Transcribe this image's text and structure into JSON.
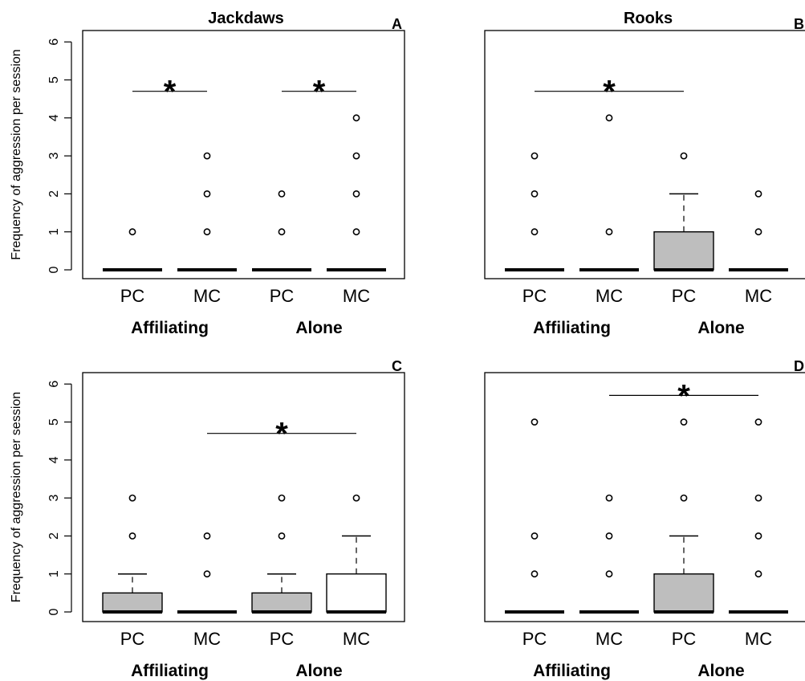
{
  "figure": {
    "ylabel": "Frequency of aggression per session",
    "y_ticks": [
      "0",
      "1",
      "2",
      "3",
      "4",
      "5",
      "6"
    ],
    "colors": {
      "filled_box": "#bebebe",
      "empty_box": "#ffffff",
      "line": "#000000"
    }
  },
  "chart_data": [
    {
      "type": "box",
      "panel_letter": "A",
      "title": "Jackdaws",
      "ylabel": "Frequency of aggression per session",
      "ylim": [
        0,
        6
      ],
      "categories": [
        "PC",
        "MC",
        "PC",
        "MC"
      ],
      "groups": [
        "Affiliating",
        "Alone"
      ],
      "boxes": [
        {
          "label": "PC",
          "group": "Affiliating",
          "q1": 0,
          "median": 0,
          "q3": 0,
          "whisker_low": 0,
          "whisker_high": 0,
          "outliers": [
            1
          ],
          "fill": "#bebebe"
        },
        {
          "label": "MC",
          "group": "Affiliating",
          "q1": 0,
          "median": 0,
          "q3": 0,
          "whisker_low": 0,
          "whisker_high": 0,
          "outliers": [
            1,
            2,
            3
          ],
          "fill": "#ffffff"
        },
        {
          "label": "PC",
          "group": "Alone",
          "q1": 0,
          "median": 0,
          "q3": 0,
          "whisker_low": 0,
          "whisker_high": 0,
          "outliers": [
            1,
            2
          ],
          "fill": "#bebebe"
        },
        {
          "label": "MC",
          "group": "Alone",
          "q1": 0,
          "median": 0,
          "q3": 0,
          "whisker_low": 0,
          "whisker_high": 0,
          "outliers": [
            1,
            2,
            3,
            4
          ],
          "fill": "#ffffff"
        }
      ],
      "significance": [
        {
          "from_box": 1,
          "to_box": 2,
          "y": 4.7,
          "symbol": "*"
        },
        {
          "from_box": 3,
          "to_box": 4,
          "y": 4.7,
          "symbol": "*"
        }
      ]
    },
    {
      "type": "box",
      "panel_letter": "B",
      "title": "Rooks",
      "ylabel": "",
      "ylim": [
        0,
        6
      ],
      "categories": [
        "PC",
        "MC",
        "PC",
        "MC"
      ],
      "groups": [
        "Affiliating",
        "Alone"
      ],
      "boxes": [
        {
          "label": "PC",
          "group": "Affiliating",
          "q1": 0,
          "median": 0,
          "q3": 0,
          "whisker_low": 0,
          "whisker_high": 0,
          "outliers": [
            1,
            2,
            3
          ],
          "fill": "#bebebe"
        },
        {
          "label": "MC",
          "group": "Affiliating",
          "q1": 0,
          "median": 0,
          "q3": 0,
          "whisker_low": 0,
          "whisker_high": 0,
          "outliers": [
            1,
            4
          ],
          "fill": "#ffffff"
        },
        {
          "label": "PC",
          "group": "Alone",
          "q1": 0,
          "median": 0,
          "q3": 1,
          "whisker_low": 0,
          "whisker_high": 2,
          "outliers": [
            3
          ],
          "fill": "#bebebe"
        },
        {
          "label": "MC",
          "group": "Alone",
          "q1": 0,
          "median": 0,
          "q3": 0,
          "whisker_low": 0,
          "whisker_high": 0,
          "outliers": [
            1,
            2
          ],
          "fill": "#ffffff"
        }
      ],
      "significance": [
        {
          "from_box": 1,
          "to_box": 3,
          "y": 4.7,
          "symbol": "*"
        }
      ]
    },
    {
      "type": "box",
      "panel_letter": "C",
      "title": "",
      "ylabel": "Frequency of aggression per session",
      "ylim": [
        0,
        6
      ],
      "categories": [
        "PC",
        "MC",
        "PC",
        "MC"
      ],
      "groups": [
        "Affiliating",
        "Alone"
      ],
      "boxes": [
        {
          "label": "PC",
          "group": "Affiliating",
          "q1": 0,
          "median": 0,
          "q3": 0.5,
          "whisker_low": 0,
          "whisker_high": 1,
          "outliers": [
            2,
            3
          ],
          "fill": "#bebebe"
        },
        {
          "label": "MC",
          "group": "Affiliating",
          "q1": 0,
          "median": 0,
          "q3": 0,
          "whisker_low": 0,
          "whisker_high": 0,
          "outliers": [
            1,
            2
          ],
          "fill": "#ffffff"
        },
        {
          "label": "PC",
          "group": "Alone",
          "q1": 0,
          "median": 0,
          "q3": 0.5,
          "whisker_low": 0,
          "whisker_high": 1,
          "outliers": [
            2,
            3
          ],
          "fill": "#bebebe"
        },
        {
          "label": "MC",
          "group": "Alone",
          "q1": 0,
          "median": 0,
          "q3": 1,
          "whisker_low": 0,
          "whisker_high": 2,
          "outliers": [
            3
          ],
          "fill": "#ffffff"
        }
      ],
      "significance": [
        {
          "from_box": 2,
          "to_box": 4,
          "y": 4.7,
          "symbol": "*"
        }
      ]
    },
    {
      "type": "box",
      "panel_letter": "D",
      "title": "",
      "ylabel": "",
      "ylim": [
        0,
        6
      ],
      "categories": [
        "PC",
        "MC",
        "PC",
        "MC"
      ],
      "groups": [
        "Affiliating",
        "Alone"
      ],
      "boxes": [
        {
          "label": "PC",
          "group": "Affiliating",
          "q1": 0,
          "median": 0,
          "q3": 0,
          "whisker_low": 0,
          "whisker_high": 0,
          "outliers": [
            1,
            2,
            5
          ],
          "fill": "#bebebe"
        },
        {
          "label": "MC",
          "group": "Affiliating",
          "q1": 0,
          "median": 0,
          "q3": 0,
          "whisker_low": 0,
          "whisker_high": 0,
          "outliers": [
            1,
            2,
            3
          ],
          "fill": "#ffffff"
        },
        {
          "label": "PC",
          "group": "Alone",
          "q1": 0,
          "median": 0,
          "q3": 1,
          "whisker_low": 0,
          "whisker_high": 2,
          "outliers": [
            3,
            5
          ],
          "fill": "#bebebe"
        },
        {
          "label": "MC",
          "group": "Alone",
          "q1": 0,
          "median": 0,
          "q3": 0,
          "whisker_low": 0,
          "whisker_high": 0,
          "outliers": [
            1,
            2,
            3,
            5
          ],
          "fill": "#ffffff"
        }
      ],
      "significance": [
        {
          "from_box": 2,
          "to_box": 4,
          "y": 5.7,
          "symbol": "*"
        }
      ]
    }
  ]
}
